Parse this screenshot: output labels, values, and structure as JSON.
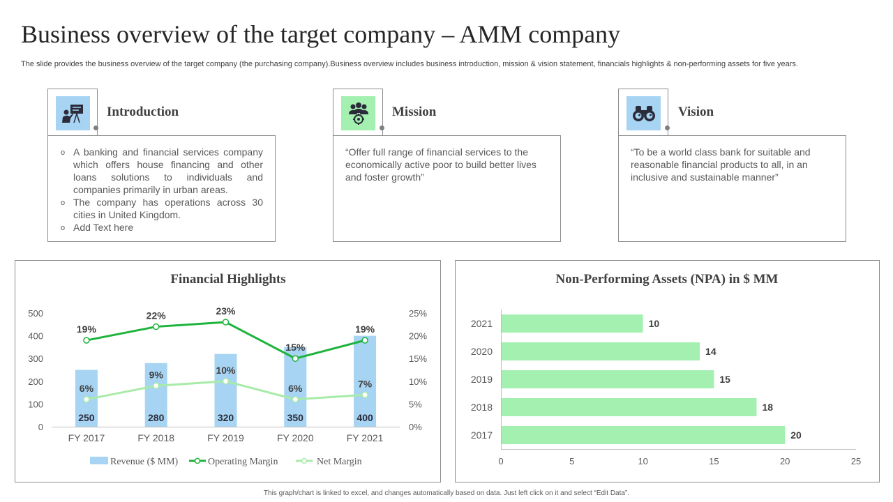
{
  "title": "Business overview of the target company – AMM company",
  "subtitle": "The slide provides the business overview of the target company (the purchasing company).Business overview includes business introduction, mission & vision statement, financials highlights & non-performing assets for five years.",
  "cards": {
    "introduction": {
      "title": "Introduction",
      "icon": "presentation-icon",
      "bullets": [
        "A banking and financial services company which offers house financing and other loans solutions to individuals and companies primarily in urban areas.",
        "The company has operations across 30 cities in United Kingdom.",
        "Add Text here"
      ]
    },
    "mission": {
      "title": "Mission",
      "icon": "team-target-icon",
      "text": "“Offer full range of financial services to the economically active poor to build better lives and foster growth”"
    },
    "vision": {
      "title": "Vision",
      "icon": "binoculars-icon",
      "text": "“To be a world class bank for suitable and reasonable financial products to all, in an inclusive and sustainable manner”"
    }
  },
  "colors": {
    "revenue_bar": "#a6d4f2",
    "operating_margin": "#1db33c",
    "net_margin": "#a8eba8",
    "npa_bar": "#a3f0b0",
    "icon_blue": "#a6d4f2",
    "icon_green": "#a3f0b0"
  },
  "footer": "This graph/chart is linked to excel, and changes automatically based on data. Just left click on it and select “Edit Data”.",
  "chart_data": [
    {
      "type": "bar",
      "title": "Financial Highlights",
      "categories": [
        "FY 2017",
        "FY 2018",
        "FY 2019",
        "FY 2020",
        "FY 2021"
      ],
      "series": [
        {
          "name": "Revenue ($ MM)",
          "type": "bar",
          "axis": "left",
          "values": [
            250,
            280,
            320,
            350,
            400
          ],
          "labels": [
            "250",
            "280",
            "320",
            "350",
            "400"
          ]
        },
        {
          "name": "Operating Margin",
          "type": "line",
          "axis": "right",
          "values": [
            19,
            22,
            23,
            15,
            19
          ],
          "labels": [
            "19%",
            "22%",
            "23%",
            "15%",
            "19%"
          ]
        },
        {
          "name": "Net Margin",
          "type": "line",
          "axis": "right",
          "values": [
            6,
            9,
            10,
            6,
            7
          ],
          "labels": [
            "6%",
            "9%",
            "10%",
            "6%",
            "7%"
          ]
        }
      ],
      "ylim": [
        0,
        500
      ],
      "yticks": [
        "0",
        "100",
        "200",
        "300",
        "400",
        "500"
      ],
      "y2lim": [
        0,
        25
      ],
      "y2ticks": [
        "0%",
        "5%",
        "10%",
        "15%",
        "20%",
        "25%"
      ],
      "legend": "bottom",
      "grid": false
    },
    {
      "type": "bar",
      "orientation": "horizontal",
      "title": "Non-Performing Assets (NPA) in $ MM",
      "categories": [
        "2017",
        "2018",
        "2019",
        "2020",
        "2021"
      ],
      "values": [
        20,
        18,
        15,
        14,
        10
      ],
      "labels": [
        "20",
        "18",
        "15",
        "14",
        "10"
      ],
      "xlim": [
        0,
        25
      ],
      "xticks": [
        "0",
        "5",
        "10",
        "15",
        "20",
        "25"
      ],
      "grid": false
    }
  ]
}
